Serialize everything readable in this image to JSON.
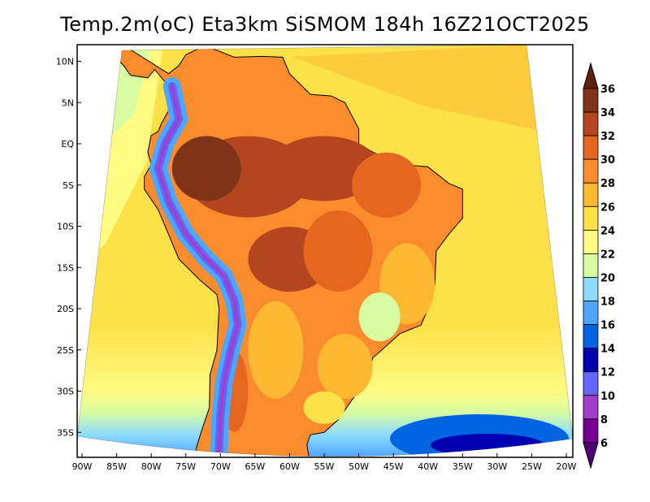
{
  "title": "Temp.2m(oC) Eta3km SiSMOM 184h 16Z21OCT2025",
  "lat_axis": [
    {
      "label": "10N",
      "lat": 10
    },
    {
      "label": "5N",
      "lat": 5
    },
    {
      "label": "EQ",
      "lat": 0
    },
    {
      "label": "5S",
      "lat": -5
    },
    {
      "label": "10S",
      "lat": -10
    },
    {
      "label": "15S",
      "lat": -15
    },
    {
      "label": "20S",
      "lat": -20
    },
    {
      "label": "25S",
      "lat": -25
    },
    {
      "label": "30S",
      "lat": -30
    },
    {
      "label": "35S",
      "lat": -35
    }
  ],
  "lon_axis": [
    {
      "label": "90W",
      "lon": -90
    },
    {
      "label": "85W",
      "lon": -85
    },
    {
      "label": "80W",
      "lon": -80
    },
    {
      "label": "75W",
      "lon": -75
    },
    {
      "label": "70W",
      "lon": -70
    },
    {
      "label": "65W",
      "lon": -65
    },
    {
      "label": "60W",
      "lon": -60
    },
    {
      "label": "55W",
      "lon": -55
    },
    {
      "label": "50W",
      "lon": -50
    },
    {
      "label": "45W",
      "lon": -45
    },
    {
      "label": "40W",
      "lon": -40
    },
    {
      "label": "35W",
      "lon": -35
    },
    {
      "label": "30W",
      "lon": -30
    },
    {
      "label": "25W",
      "lon": -25
    },
    {
      "label": "20W",
      "lon": -20
    }
  ],
  "colorbar": {
    "labels": [
      "36",
      "34",
      "32",
      "30",
      "28",
      "26",
      "24",
      "22",
      "20",
      "18",
      "16",
      "14",
      "12",
      "10",
      "8",
      "6"
    ],
    "colors": [
      "#7f3418",
      "#b3461f",
      "#e4661f",
      "#fb8c2e",
      "#fdb831",
      "#fde148",
      "#fffb82",
      "#d7fca2",
      "#8edcfd",
      "#4fa6fd",
      "#0064e0",
      "#0000b0",
      "#6464ff",
      "#a040c8",
      "#780090"
    ],
    "over_color": "#602010",
    "under_color": "#500070"
  }
}
